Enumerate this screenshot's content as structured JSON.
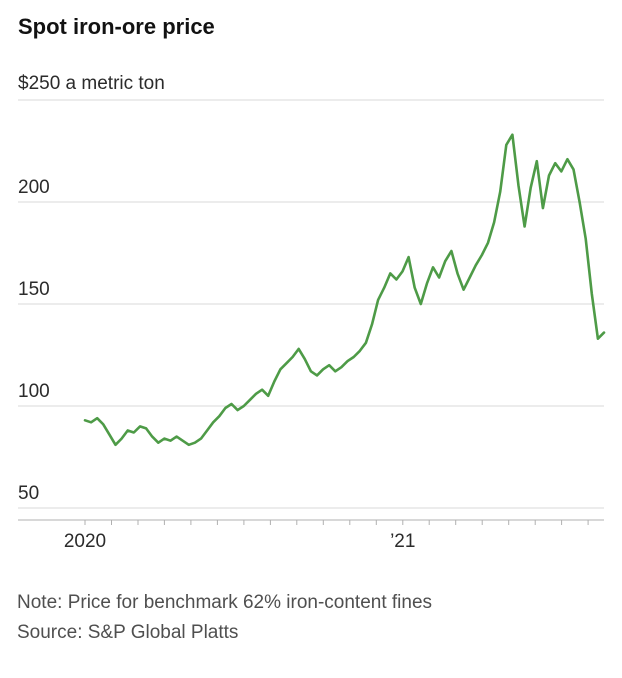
{
  "footer": {
    "note": "Note: Price for benchmark 62% iron-content fines",
    "source": "Source: S&P Global Platts"
  },
  "chart_data": {
    "type": "line",
    "title": "Spot iron-ore price",
    "unit_label": "$250 a metric ton",
    "xlabel": "",
    "ylabel": "$ a metric ton",
    "ylim": [
      50,
      250
    ],
    "y_ticks": [
      250,
      200,
      150,
      100,
      50
    ],
    "grid": "horizontal",
    "legend": "none",
    "x_range": "Jan 2020 - Aug 2021",
    "x_cadence": "weekly",
    "x_months_total": 19.6,
    "x_axis_labels": [
      {
        "label": "2020",
        "month": 0
      },
      {
        "label": "’21",
        "month": 12
      }
    ],
    "colors": {
      "line": "#4e9b47",
      "grid": "#d8d8d8",
      "axis": "#b0b0b0",
      "title_text": "#121212",
      "label_text": "#2b2b2b",
      "footer_text": "#4f4f4f"
    },
    "series": [
      {
        "name": "Spot iron-ore price ($ a metric ton)",
        "values": [
          93,
          92,
          94,
          91,
          86,
          81,
          84,
          88,
          87,
          90,
          89,
          85,
          82,
          84,
          83,
          85,
          83,
          81,
          82,
          84,
          88,
          92,
          95,
          99,
          101,
          98,
          100,
          103,
          106,
          108,
          105,
          112,
          118,
          121,
          124,
          128,
          123,
          117,
          115,
          118,
          120,
          117,
          119,
          122,
          124,
          127,
          131,
          140,
          152,
          158,
          165,
          162,
          166,
          173,
          158,
          150,
          160,
          168,
          163,
          171,
          176,
          165,
          157,
          163,
          169,
          174,
          180,
          190,
          205,
          228,
          233,
          208,
          188,
          207,
          220,
          197,
          213,
          219,
          215,
          221,
          216,
          200,
          182,
          155,
          133,
          136
        ]
      }
    ]
  }
}
